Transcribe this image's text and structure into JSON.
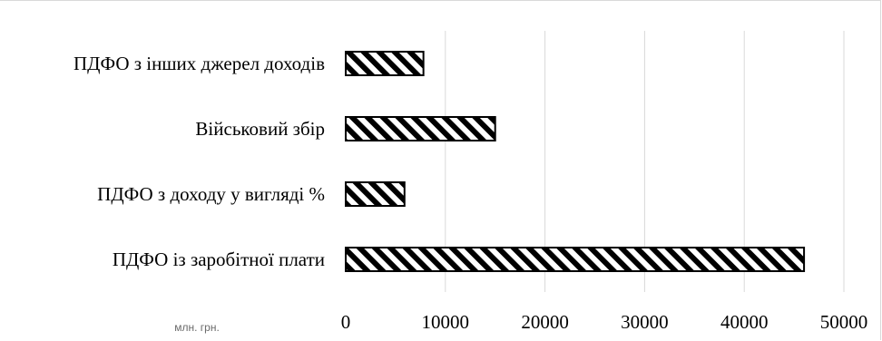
{
  "chart_data": {
    "type": "bar",
    "orientation": "horizontal",
    "categories": [
      "ПДФО з інших джерел доходів",
      "Військовий збір",
      "ПДФО з доходу у вигляді %",
      "ПДФО із заробітної плати"
    ],
    "values": [
      7800,
      15000,
      5900,
      46000
    ],
    "xlim": [
      0,
      50000
    ],
    "xticks": [
      "0",
      "10000",
      "20000",
      "30000",
      "40000",
      "50000"
    ],
    "unit_label": "млн. грн.",
    "grid": "vertical",
    "bar_fill": "diagonal-hatch",
    "colors": {
      "bar_stroke": "#000000",
      "grid": "#d9d9d9",
      "background": "#ffffff"
    }
  }
}
